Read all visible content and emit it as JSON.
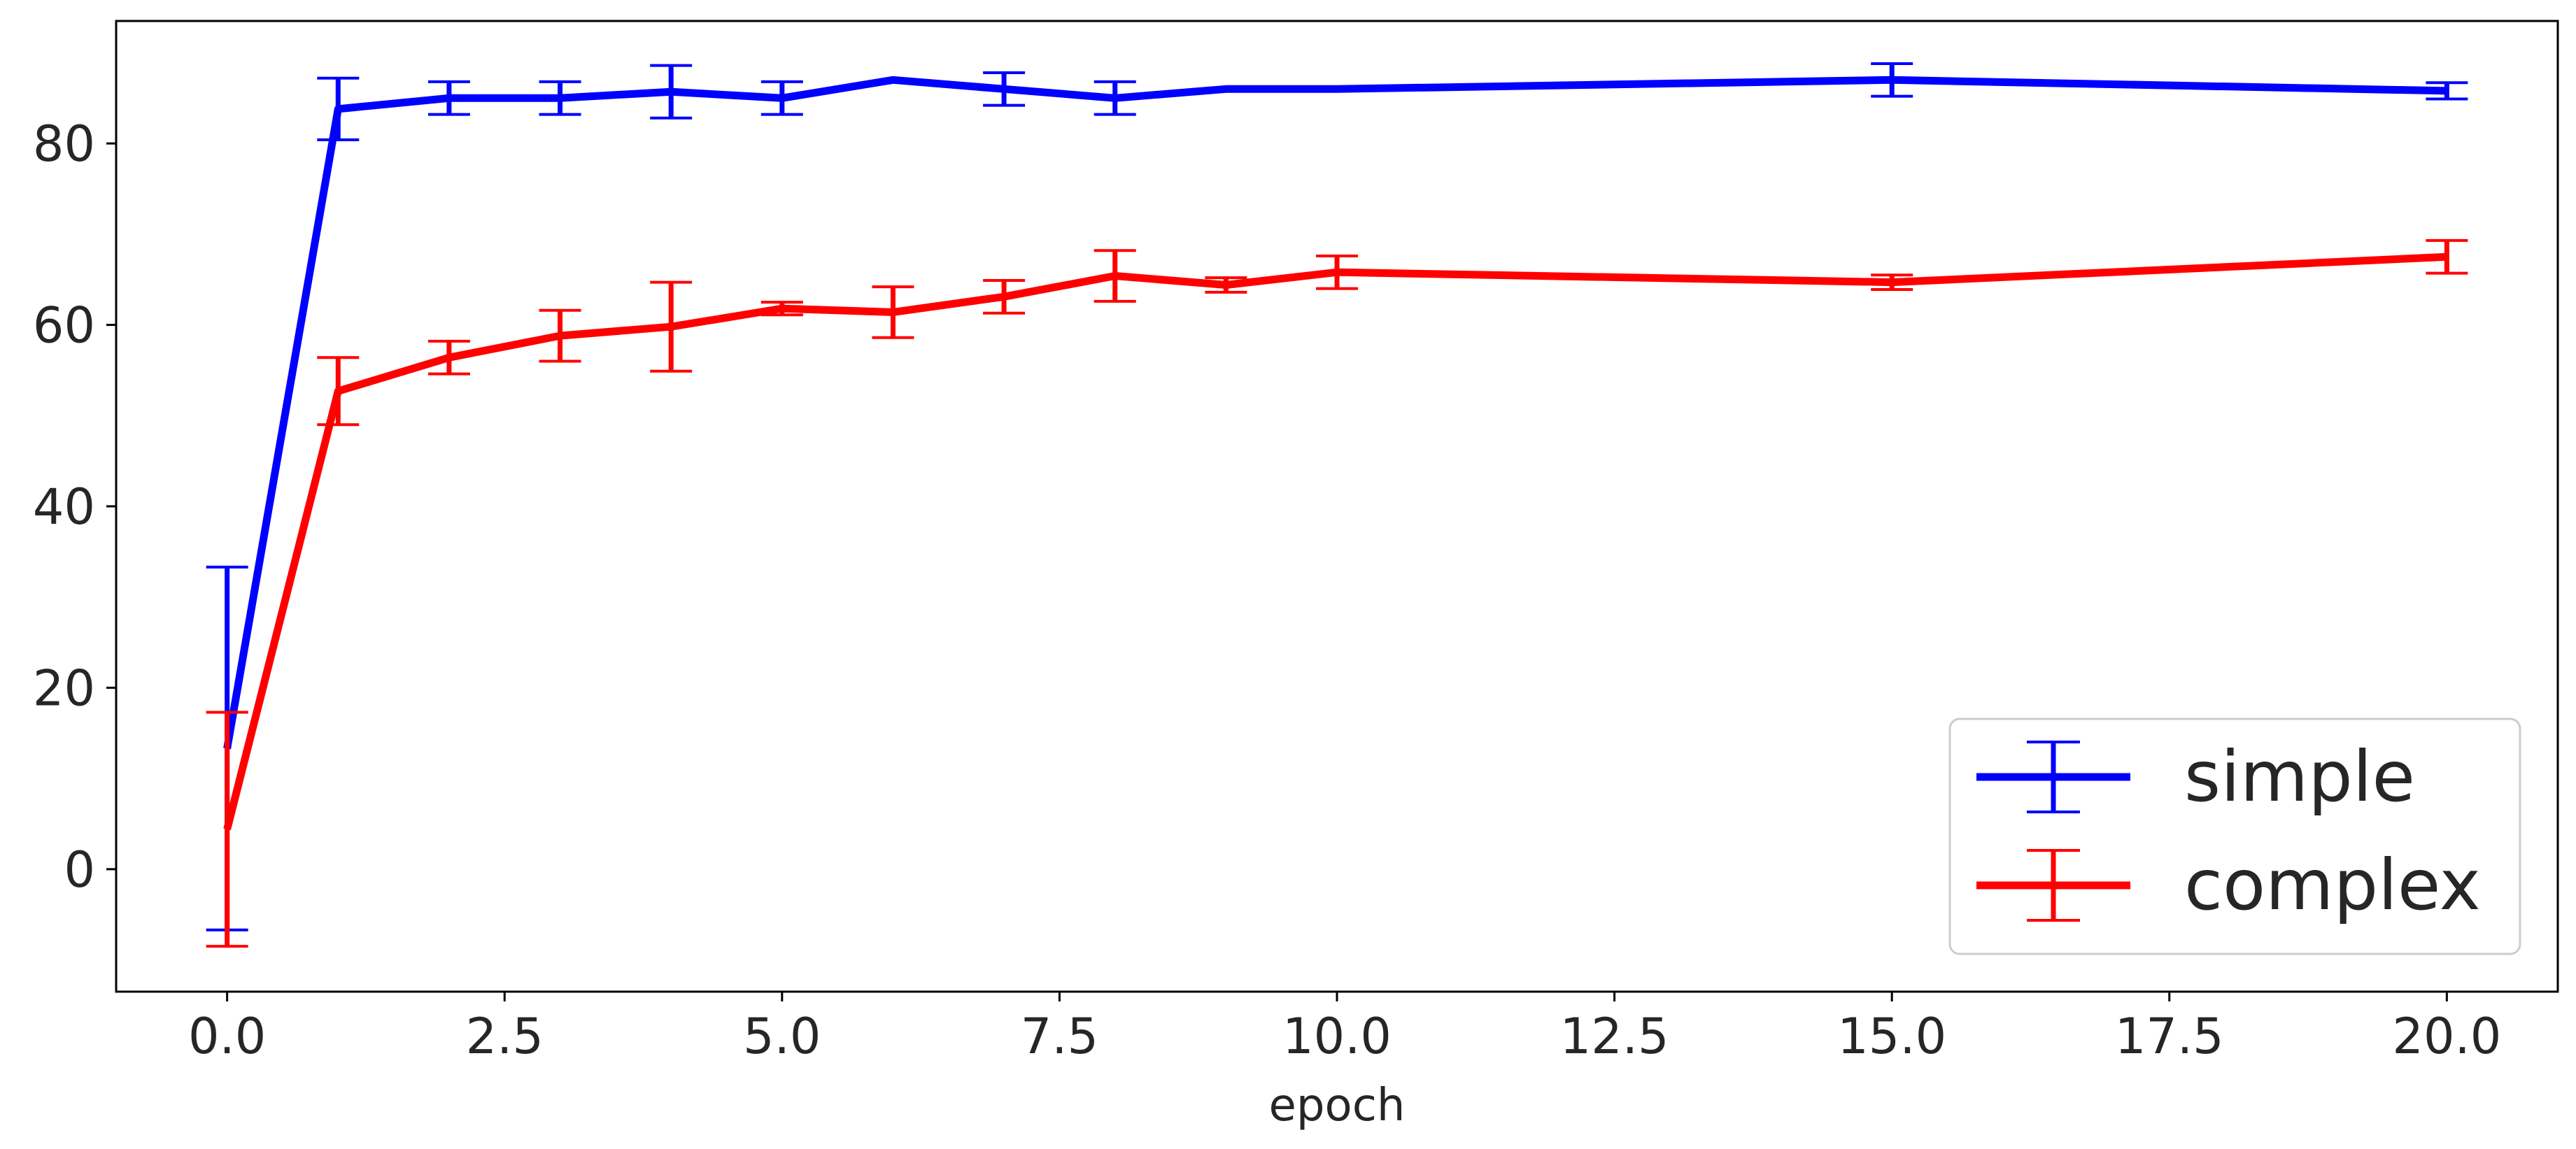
{
  "chart_data": {
    "type": "line",
    "xlabel": "epoch",
    "ylabel": "",
    "title": "",
    "xlim": [
      -1.0,
      21.0
    ],
    "ylim": [
      -13.5,
      93.5
    ],
    "x_ticks": [
      0.0,
      2.5,
      5.0,
      7.5,
      10.0,
      12.5,
      15.0,
      17.5,
      20.0
    ],
    "x_tick_labels": [
      "0.0",
      "2.5",
      "5.0",
      "7.5",
      "10.0",
      "12.5",
      "15.0",
      "17.5",
      "20.0"
    ],
    "y_ticks": [
      0,
      20,
      40,
      60,
      80
    ],
    "y_tick_labels": [
      "0",
      "20",
      "40",
      "60",
      "80"
    ],
    "grid": false,
    "legend_position": "lower-right",
    "series": [
      {
        "name": "simple",
        "color": "#0000ff",
        "x": [
          0,
          1,
          2,
          3,
          4,
          5,
          6,
          7,
          8,
          9,
          10,
          15,
          20
        ],
        "y": [
          13.3,
          83.8,
          85.0,
          85.0,
          85.7,
          85.0,
          87.0,
          86.0,
          85.0,
          86.0,
          86.0,
          87.0,
          85.8
        ],
        "err": [
          20.0,
          3.4,
          1.8,
          1.8,
          2.9,
          1.8,
          0.0,
          1.8,
          1.8,
          0.0,
          0.0,
          1.8,
          0.9
        ]
      },
      {
        "name": "complex",
        "color": "#ff0000",
        "x": [
          0,
          1,
          2,
          3,
          4,
          5,
          6,
          7,
          8,
          9,
          10,
          15,
          20
        ],
        "y": [
          4.4,
          52.7,
          56.4,
          58.8,
          59.8,
          61.8,
          61.4,
          63.1,
          65.4,
          64.4,
          65.8,
          64.7,
          67.5
        ],
        "err": [
          12.9,
          3.7,
          1.8,
          2.8,
          4.9,
          0.7,
          2.8,
          1.8,
          2.8,
          0.8,
          1.8,
          0.8,
          1.8
        ]
      }
    ]
  }
}
